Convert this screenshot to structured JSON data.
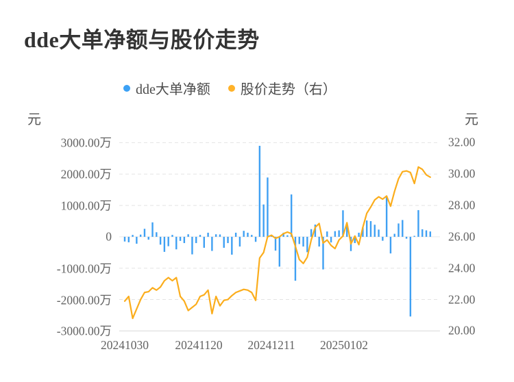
{
  "page": {
    "title": "dde大单净额与股价走势",
    "background": "#ffffff"
  },
  "legend": {
    "items": [
      {
        "label": "dde大单净额",
        "marker": "circle-icon",
        "color": "#3CA1F5"
      },
      {
        "label": "股价走势（右）",
        "marker": "circle-icon",
        "color": "#FFB229"
      }
    ]
  },
  "axes": {
    "left": {
      "unit": "元",
      "tick_labels": [
        "3000.00万",
        "2000.00万",
        "1000.00万",
        "0",
        "-1000.00万",
        "-2000.00万",
        "-3000.00万"
      ]
    },
    "right": {
      "unit": "元",
      "tick_labels": [
        "32.00",
        "30.00",
        "28.00",
        "26.00",
        "24.00",
        "22.00",
        "20.00"
      ]
    },
    "x": {
      "tick_labels": [
        "20241030",
        "20241120",
        "20241211",
        "20250102"
      ]
    }
  },
  "chart_data": {
    "type": "combo",
    "title": "dde大单净额与股价走势",
    "x_axis": {
      "tick_labels": [
        "20241030",
        "20241120",
        "20241211",
        "20250102"
      ],
      "tick_indices": [
        0,
        18,
        36,
        54
      ],
      "n_points": 78
    },
    "left_axis": {
      "unit": "元",
      "tick_unit": "万",
      "range_wan": [
        -3000,
        3000
      ],
      "tick_step_wan": 1000
    },
    "right_axis": {
      "unit": "元",
      "range": [
        20.0,
        32.0
      ],
      "tick_step": 2.0
    },
    "grid": {
      "horizontal": "dashed",
      "zero_line": "solid",
      "bottom_axis": "solid"
    },
    "series": [
      {
        "name": "dde大单净额",
        "type": "bar",
        "axis": "left",
        "unit": "万元",
        "color": "#3FA0F3",
        "values": [
          -150,
          -175,
          60,
          -220,
          70,
          255,
          -90,
          460,
          145,
          -250,
          -480,
          -300,
          60,
          -400,
          -130,
          -200,
          80,
          -560,
          -200,
          60,
          -350,
          130,
          -450,
          80,
          75,
          -350,
          -200,
          -570,
          130,
          -310,
          190,
          130,
          60,
          -160,
          2900,
          1030,
          1890,
          50,
          -440,
          -950,
          130,
          50,
          1350,
          -1400,
          -230,
          -310,
          -490,
          245,
          390,
          -310,
          -1040,
          170,
          -180,
          180,
          205,
          845,
          425,
          -455,
          -200,
          130,
          300,
          520,
          500,
          385,
          230,
          -125,
          1270,
          -530,
          95,
          425,
          535,
          -60,
          -2540,
          30,
          850,
          240,
          205,
          170
        ]
      },
      {
        "name": "股价走势（右）",
        "type": "line",
        "axis": "right",
        "unit": "元",
        "color": "#FBAD1C",
        "values": [
          21.9,
          22.2,
          20.8,
          21.4,
          22.0,
          22.45,
          22.5,
          22.75,
          22.6,
          22.8,
          23.2,
          23.4,
          23.2,
          23.4,
          22.2,
          21.9,
          21.3,
          21.5,
          21.7,
          22.2,
          22.3,
          22.6,
          21.1,
          22.2,
          21.6,
          21.95,
          22.0,
          22.25,
          22.45,
          22.55,
          22.65,
          22.6,
          22.45,
          21.95,
          24.65,
          25.0,
          26.0,
          26.1,
          25.9,
          26.0,
          26.2,
          26.3,
          26.2,
          25.4,
          24.55,
          24.3,
          24.7,
          25.8,
          26.6,
          26.85,
          25.6,
          25.8,
          25.45,
          25.25,
          25.8,
          26.05,
          26.9,
          25.55,
          26.05,
          25.5,
          26.6,
          27.5,
          27.9,
          28.35,
          28.55,
          28.4,
          28.6,
          27.95,
          28.9,
          29.7,
          30.15,
          30.2,
          30.1,
          29.4,
          30.45,
          30.3,
          29.95,
          29.8
        ]
      }
    ]
  },
  "colors": {
    "bar": "#3FA0F3",
    "line": "#FBAD1C",
    "grid_dashed": "#E3E3E3",
    "zero_line": "#E9E9E9",
    "axis_line": "#D8D8D8",
    "title_text": "#333333",
    "axis_text": "#636363"
  }
}
